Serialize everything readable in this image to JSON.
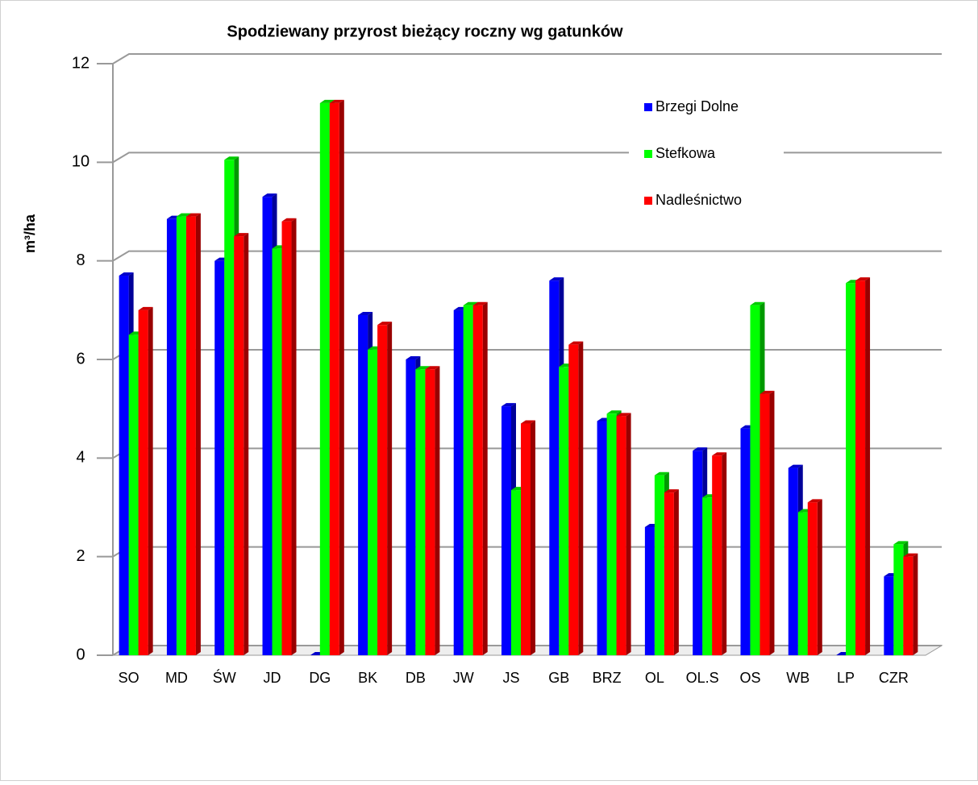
{
  "chart_data": {
    "type": "bar3d",
    "title": "Spodziewany przyrost bieżący roczny wg gatunków",
    "y_label": "m³/ha",
    "categories": [
      "SO",
      "MD",
      "ŚW",
      "JD",
      "DG",
      "BK",
      "DB",
      "JW",
      "JS",
      "GB",
      "BRZ",
      "OL",
      "OL.S",
      "OS",
      "WB",
      "LP",
      "CZR"
    ],
    "series": [
      {
        "name": "Brzegi Dolne",
        "color": "#0000ff",
        "values": [
          7.7,
          8.85,
          8.0,
          9.3,
          0,
          6.9,
          6.0,
          7.0,
          5.05,
          7.6,
          4.75,
          2.6,
          4.15,
          4.6,
          3.8,
          0,
          1.6
        ]
      },
      {
        "name": "Stefkowa",
        "color": "#00ff00",
        "values": [
          6.5,
          8.9,
          10.05,
          8.25,
          11.2,
          6.2,
          5.8,
          7.1,
          3.35,
          5.85,
          4.9,
          3.65,
          3.2,
          7.1,
          2.9,
          7.55,
          2.25
        ]
      },
      {
        "name": "Nadleśnictwo",
        "color": "#ff0000",
        "values": [
          7.0,
          8.9,
          8.5,
          8.8,
          11.2,
          6.7,
          5.8,
          7.1,
          4.7,
          6.3,
          4.85,
          3.3,
          4.05,
          5.3,
          3.1,
          7.6,
          2.0
        ]
      }
    ],
    "ylim": [
      0,
      12
    ],
    "yticks": [
      0,
      2,
      4,
      6,
      8,
      10,
      12
    ],
    "grid": true
  }
}
